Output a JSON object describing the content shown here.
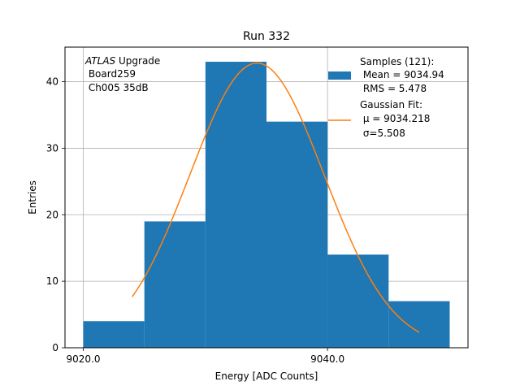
{
  "chart_data": {
    "type": "bar",
    "title": "Run 332",
    "xlabel": "Energy [ADC Counts]",
    "ylabel": "Entries",
    "xlim": [
      9018.5,
      9051.5
    ],
    "ylim": [
      0,
      45.2
    ],
    "x_ticks": [
      9020,
      9040
    ],
    "x_tick_labels": [
      "9020.0",
      "9040.0"
    ],
    "y_ticks": [
      0,
      10,
      20,
      30,
      40
    ],
    "y_tick_labels": [
      "0",
      "10",
      "20",
      "30",
      "40"
    ],
    "grid": true,
    "bins": [
      {
        "left": 9020,
        "right": 9025,
        "count": 4
      },
      {
        "left": 9025,
        "right": 9030,
        "count": 19
      },
      {
        "left": 9030,
        "right": 9035,
        "count": 43
      },
      {
        "left": 9035,
        "right": 9040,
        "count": 34
      },
      {
        "left": 9040,
        "right": 9045,
        "count": 14
      },
      {
        "left": 9045,
        "right": 9050,
        "count": 7
      }
    ],
    "fit": {
      "type": "gaussian",
      "amplitude": 42.8,
      "mu": 9034.218,
      "sigma": 5.508,
      "x_range": [
        9024,
        9047.5
      ]
    },
    "colors": {
      "bars": "#1f77b4",
      "fit": "#ff7f0e",
      "grid": "#b0b0b0"
    },
    "legend": {
      "position": "upper right",
      "samples_lines": [
        "Samples (121):",
        " Mean = 9034.94",
        " RMS = 5.478"
      ],
      "fit_lines": [
        "Gaussian Fit:",
        " μ = 9034.218",
        " σ=5.508"
      ]
    },
    "annotation": {
      "experiment": "ATLAS",
      "experiment_suffix": " Upgrade",
      "lines": [
        " Board259",
        " Ch005 35dB"
      ]
    }
  }
}
